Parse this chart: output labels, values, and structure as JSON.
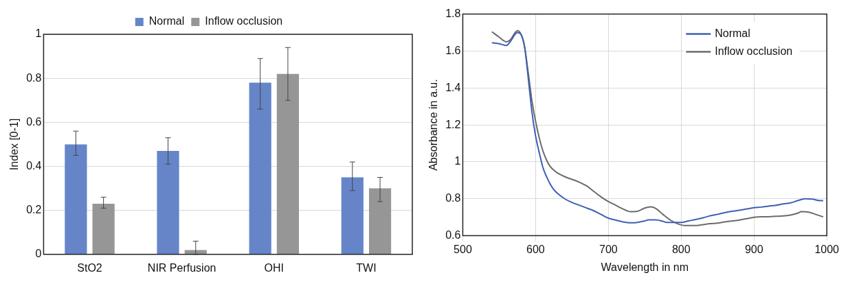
{
  "chart_data": [
    {
      "type": "bar",
      "categories": [
        "StO2",
        "NIR Perfusion",
        "OHI",
        "TWI"
      ],
      "ylabel": "Index [0-1]",
      "ylim": [
        0,
        1
      ],
      "yticks": [
        0,
        0.2,
        0.4,
        0.6,
        0.8,
        1
      ],
      "grid": "y",
      "legend": "top",
      "series": [
        {
          "name": "Normal",
          "color": "#6585c8",
          "values": [
            0.5,
            0.47,
            0.78,
            0.35
          ],
          "errors": [
            [
              0.45,
              0.56
            ],
            [
              0.41,
              0.53
            ],
            [
              0.66,
              0.89
            ],
            [
              0.29,
              0.42
            ]
          ]
        },
        {
          "name": "Inflow occlusion",
          "color": "#969696",
          "values": [
            0.23,
            0.02,
            0.82,
            0.3
          ],
          "errors": [
            [
              0.21,
              0.26
            ],
            [
              0.0,
              0.06
            ],
            [
              0.7,
              0.94
            ],
            [
              0.24,
              0.35
            ]
          ]
        }
      ]
    },
    {
      "type": "line",
      "xlabel": "Wavelength in nm",
      "ylabel": "Absorbance in a.u.",
      "xlim": [
        500,
        1000
      ],
      "xticks": [
        500,
        600,
        700,
        800,
        900,
        1000
      ],
      "ylim": [
        0.6,
        1.8
      ],
      "yticks": [
        0.6,
        0.8,
        1,
        1.2,
        1.4,
        1.6,
        1.8
      ],
      "grid": true,
      "legend": "top right",
      "marker": "none",
      "line_style": "solid",
      "series": [
        {
          "name": "Normal",
          "color": "#3f5fb5",
          "x": [
            540,
            550,
            560,
            565,
            575,
            580,
            585,
            590,
            595,
            600,
            605,
            610,
            615,
            620,
            625,
            630,
            640,
            650,
            660,
            670,
            680,
            690,
            700,
            710,
            720,
            730,
            740,
            750,
            755,
            765,
            775,
            780,
            790,
            800,
            810,
            820,
            830,
            840,
            850,
            860,
            870,
            880,
            890,
            900,
            910,
            920,
            930,
            940,
            950,
            960,
            970,
            980,
            990,
            995
          ],
          "values": [
            1.645,
            1.64,
            1.63,
            1.65,
            1.7,
            1.69,
            1.62,
            1.45,
            1.27,
            1.14,
            1.05,
            0.97,
            0.92,
            0.88,
            0.85,
            0.83,
            0.8,
            0.78,
            0.765,
            0.75,
            0.735,
            0.715,
            0.695,
            0.685,
            0.675,
            0.67,
            0.672,
            0.68,
            0.686,
            0.686,
            0.678,
            0.672,
            0.672,
            0.672,
            0.68,
            0.688,
            0.697,
            0.708,
            0.716,
            0.725,
            0.732,
            0.738,
            0.745,
            0.752,
            0.755,
            0.76,
            0.765,
            0.772,
            0.778,
            0.79,
            0.8,
            0.798,
            0.79,
            0.79
          ]
        },
        {
          "name": "Inflow occlusion",
          "color": "#6b6b6b",
          "x": [
            540,
            550,
            560,
            565,
            575,
            580,
            585,
            590,
            595,
            600,
            605,
            610,
            615,
            620,
            625,
            630,
            640,
            650,
            660,
            670,
            680,
            690,
            700,
            710,
            720,
            730,
            740,
            750,
            758,
            765,
            775,
            785,
            795,
            805,
            820,
            830,
            840,
            850,
            860,
            870,
            880,
            890,
            900,
            910,
            920,
            930,
            940,
            950,
            960,
            965,
            975,
            985,
            995
          ],
          "values": [
            1.705,
            1.675,
            1.65,
            1.66,
            1.71,
            1.69,
            1.62,
            1.48,
            1.33,
            1.22,
            1.13,
            1.06,
            1.01,
            0.975,
            0.955,
            0.94,
            0.92,
            0.905,
            0.89,
            0.87,
            0.84,
            0.81,
            0.785,
            0.765,
            0.745,
            0.73,
            0.732,
            0.75,
            0.756,
            0.748,
            0.715,
            0.685,
            0.665,
            0.655,
            0.655,
            0.66,
            0.665,
            0.668,
            0.675,
            0.68,
            0.685,
            0.692,
            0.7,
            0.703,
            0.703,
            0.705,
            0.707,
            0.712,
            0.722,
            0.73,
            0.728,
            0.715,
            0.702
          ]
        }
      ]
    }
  ]
}
